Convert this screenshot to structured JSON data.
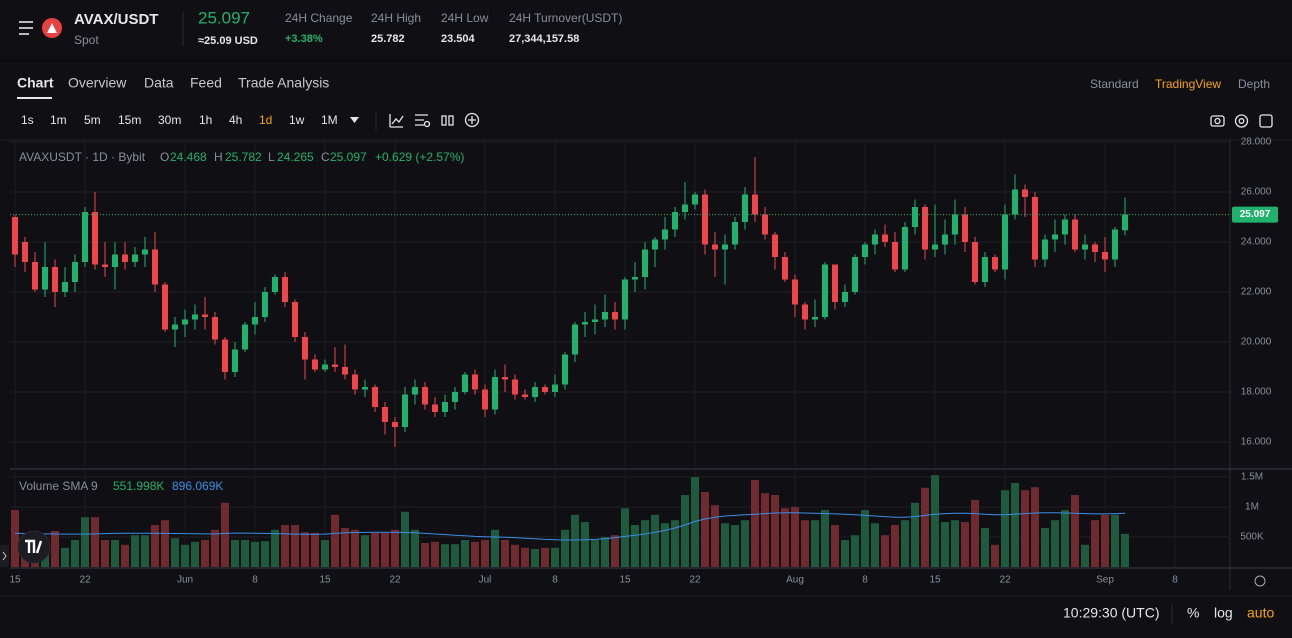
{
  "header": {
    "pair": "AVAX/USDT",
    "market": "Spot",
    "price": "25.097",
    "price_usd": "≈25.09 USD",
    "stats": [
      {
        "label": "24H Change",
        "value": "+3.38%"
      },
      {
        "label": "24H High",
        "value": "25.782"
      },
      {
        "label": "24H Low",
        "value": "23.504"
      },
      {
        "label": "24H Turnover(USDT)",
        "value": "27,344,157.58"
      }
    ]
  },
  "tabs": [
    "Chart",
    "Overview",
    "Data",
    "Feed",
    "Trade Analysis"
  ],
  "views": [
    "Standard",
    "TradingView",
    "Depth"
  ],
  "intervals": [
    "1s",
    "1m",
    "5m",
    "15m",
    "30m",
    "1h",
    "4h",
    "1d",
    "1w",
    "1M"
  ],
  "chart_data": {
    "type": "candlestick",
    "legend": {
      "symbol": "AVAXUSDT · 1D · Bybit",
      "o": "O",
      "h": "H",
      "l": "L",
      "c": "C",
      "change": "+0.629 (+2.57%)"
    },
    "categories": [
      "15",
      null,
      null,
      null,
      null,
      null,
      null,
      "22",
      null,
      null,
      null,
      null,
      null,
      null,
      null,
      null,
      null,
      "Jun",
      null,
      null,
      null,
      null,
      null,
      null,
      "8",
      null,
      null,
      null,
      null,
      null,
      null,
      "15",
      null,
      null,
      null,
      null,
      null,
      null,
      "22",
      null,
      null,
      null,
      null,
      null,
      null,
      null,
      null,
      "Jul",
      null,
      null,
      null,
      null,
      null,
      null,
      "8",
      null,
      null,
      null,
      null,
      null,
      null,
      "15",
      null,
      null,
      null,
      null,
      null,
      null,
      "22",
      null,
      null,
      null,
      null,
      null,
      null,
      null,
      null,
      null,
      "Aug",
      null,
      null,
      null,
      null,
      null,
      null,
      "8",
      null,
      null,
      null,
      null,
      null,
      null,
      "15",
      null,
      null,
      null,
      null,
      null,
      null,
      "22",
      null,
      null,
      null,
      null,
      null,
      null,
      null,
      null,
      null,
      "Sep",
      null,
      null,
      null,
      null,
      null,
      null,
      "8",
      null,
      null,
      null,
      null
    ],
    "open": [
      25.0,
      24.0,
      23.2,
      22.1,
      23.0,
      22.0,
      22.4,
      23.2,
      25.2,
      23.1,
      23.0,
      23.5,
      23.2,
      23.5,
      23.7,
      22.3,
      20.5,
      20.7,
      20.9,
      21.1,
      21.0,
      20.1,
      18.8,
      19.7,
      20.7,
      21.0,
      22.0,
      22.6,
      21.6,
      20.2,
      19.3,
      18.9,
      19.1,
      19.0,
      18.7,
      18.1,
      18.2,
      17.4,
      16.8,
      16.6,
      17.9,
      18.2,
      17.5,
      17.2,
      17.6,
      18.0,
      18.7,
      18.1,
      17.3,
      18.6,
      18.5,
      17.9,
      17.8,
      18.2,
      18.0,
      18.3,
      19.5,
      20.7,
      20.8,
      20.9,
      21.2,
      20.9,
      22.5,
      22.6,
      23.7,
      24.1,
      24.5,
      25.2,
      25.5,
      25.9,
      23.9,
      23.7,
      23.9,
      24.8,
      25.9,
      25.1,
      24.3,
      23.4,
      22.5,
      21.5,
      20.9,
      21.0,
      23.1,
      21.6,
      22.0,
      23.4,
      23.9,
      24.3,
      24.0,
      22.9,
      24.6,
      25.4,
      23.7,
      23.9,
      24.3,
      25.1,
      24.0,
      22.4,
      23.4,
      22.9,
      25.1,
      26.1,
      25.8,
      23.3,
      24.1,
      24.3,
      24.9,
      23.7,
      23.9,
      23.6,
      23.3,
      24.468,
      null,
      null,
      null,
      null,
      null,
      null,
      null,
      null,
      null
    ],
    "high": [
      25.1,
      24.2,
      23.6,
      24.0,
      23.3,
      23.0,
      23.5,
      25.4,
      26.0,
      24.0,
      24.0,
      24.0,
      23.8,
      24.2,
      24.4,
      22.4,
      21.0,
      21.3,
      21.5,
      21.8,
      21.2,
      20.2,
      20.0,
      20.8,
      21.6,
      22.2,
      22.7,
      22.8,
      21.7,
      20.4,
      19.5,
      19.3,
      19.8,
      19.9,
      18.9,
      18.5,
      18.3,
      17.6,
      17.0,
      18.2,
      18.5,
      18.4,
      17.8,
      17.9,
      18.2,
      18.8,
      18.9,
      18.3,
      18.9,
      19.1,
      18.7,
      18.1,
      18.4,
      18.3,
      18.7,
      19.6,
      20.8,
      21.2,
      21.5,
      21.9,
      21.6,
      22.6,
      23.2,
      24.0,
      24.2,
      25.0,
      25.4,
      26.4,
      26.0,
      26.1,
      24.4,
      24.3,
      25.0,
      26.2,
      27.4,
      25.4,
      24.4,
      23.6,
      22.7,
      21.6,
      21.7,
      23.2,
      23.1,
      22.3,
      23.5,
      24.0,
      24.5,
      24.7,
      24.4,
      24.8,
      25.7,
      25.5,
      25.5,
      24.9,
      25.7,
      25.4,
      24.2,
      23.6,
      23.5,
      25.5,
      26.7,
      26.3,
      26.0,
      24.3,
      24.9,
      25.1,
      25.1,
      24.3,
      24.0,
      24.2,
      24.6,
      25.782,
      null,
      null,
      null,
      null,
      null,
      null,
      null,
      null,
      null
    ],
    "low": [
      23.0,
      22.8,
      22.0,
      21.8,
      21.4,
      21.8,
      22.0,
      23.0,
      22.9,
      22.6,
      22.1,
      22.9,
      23.0,
      23.0,
      22.0,
      20.4,
      19.8,
      20.2,
      20.5,
      20.5,
      19.9,
      18.5,
      18.6,
      19.6,
      20.3,
      20.8,
      21.9,
      21.4,
      20.0,
      18.5,
      18.8,
      18.8,
      18.8,
      18.5,
      17.9,
      17.8,
      17.2,
      16.3,
      15.8,
      16.4,
      17.5,
      17.3,
      17.0,
      17.0,
      17.3,
      17.9,
      17.9,
      17.0,
      17.1,
      18.0,
      17.7,
      17.7,
      17.6,
      17.9,
      17.8,
      18.1,
      19.2,
      20.2,
      20.3,
      20.6,
      20.5,
      20.5,
      22.0,
      22.1,
      23.0,
      23.7,
      24.2,
      24.9,
      25.3,
      23.5,
      22.6,
      22.3,
      23.7,
      24.5,
      24.8,
      24.1,
      22.9,
      22.4,
      21.0,
      20.5,
      20.6,
      20.9,
      21.3,
      21.4,
      21.9,
      23.1,
      23.5,
      23.8,
      22.8,
      22.8,
      24.3,
      23.3,
      23.4,
      23.5,
      23.9,
      23.6,
      22.3,
      22.2,
      22.8,
      22.5,
      24.9,
      25.0,
      23.0,
      23.0,
      23.6,
      23.9,
      23.6,
      23.3,
      23.2,
      22.8,
      23.0,
      24.265,
      null,
      null,
      null,
      null,
      null,
      null,
      null,
      null,
      null
    ],
    "close": [
      23.5,
      23.2,
      22.1,
      23.0,
      22.0,
      22.4,
      23.2,
      25.2,
      23.1,
      23.0,
      23.5,
      23.2,
      23.5,
      23.7,
      22.3,
      20.5,
      20.7,
      20.9,
      21.1,
      21.0,
      20.1,
      18.8,
      19.7,
      20.7,
      21.0,
      22.0,
      22.6,
      21.6,
      20.2,
      19.3,
      18.9,
      19.1,
      19.0,
      18.7,
      18.1,
      18.2,
      17.4,
      16.8,
      16.6,
      17.9,
      18.2,
      17.5,
      17.2,
      17.6,
      18.0,
      18.7,
      18.1,
      17.3,
      18.6,
      18.5,
      17.9,
      17.8,
      18.2,
      18.0,
      18.3,
      19.5,
      20.7,
      20.8,
      20.9,
      21.2,
      20.9,
      22.5,
      22.6,
      23.7,
      24.1,
      24.5,
      25.2,
      25.5,
      25.9,
      23.9,
      23.7,
      23.9,
      24.8,
      25.9,
      25.1,
      24.3,
      23.4,
      22.5,
      21.5,
      20.9,
      21.0,
      23.1,
      21.6,
      22.0,
      23.4,
      23.9,
      24.3,
      24.0,
      22.9,
      24.6,
      25.4,
      23.7,
      23.9,
      24.3,
      25.1,
      24.0,
      22.4,
      23.4,
      22.9,
      25.1,
      26.1,
      25.8,
      23.3,
      24.1,
      24.3,
      24.9,
      23.7,
      23.9,
      23.6,
      23.3,
      24.5,
      25.097,
      null,
      null,
      null,
      null,
      null,
      null,
      null,
      null,
      null
    ],
    "up_color": "#20b26c",
    "down_color": "#ef454a",
    "ylim": [
      15,
      28
    ],
    "yticks": [
      {
        "value": 16,
        "label": "16.000"
      },
      {
        "value": 18,
        "label": "18.000"
      },
      {
        "value": 20,
        "label": "20.000"
      },
      {
        "value": 22,
        "label": "22.000"
      },
      {
        "value": 24,
        "label": "24.000"
      },
      {
        "value": 26,
        "label": "26.000"
      },
      {
        "value": 28,
        "label": "28.000"
      }
    ],
    "grid": true,
    "last_price_line": true,
    "volume": {
      "title": "Volume SMA 9",
      "last_label": "551.998K",
      "sma_label": "896.069K",
      "up_color": "#1e5a3d",
      "down_color": "#6e2a2f",
      "sma_color": "#3a8ee6",
      "values": [
        950000,
        450000,
        320000,
        320000,
        600000,
        320000,
        450000,
        830000,
        830000,
        450000,
        450000,
        370000,
        530000,
        530000,
        700000,
        780000,
        480000,
        370000,
        420000,
        450000,
        620000,
        1070000,
        450000,
        450000,
        420000,
        430000,
        620000,
        700000,
        700000,
        580000,
        570000,
        450000,
        870000,
        650000,
        620000,
        530000,
        570000,
        570000,
        620000,
        920000,
        620000,
        400000,
        420000,
        380000,
        380000,
        450000,
        420000,
        450000,
        620000,
        450000,
        370000,
        320000,
        300000,
        320000,
        320000,
        620000,
        870000,
        750000,
        450000,
        500000,
        530000,
        980000,
        700000,
        780000,
        870000,
        730000,
        780000,
        1200000,
        1500000,
        1250000,
        1030000,
        730000,
        700000,
        780000,
        1450000,
        1230000,
        1200000,
        980000,
        1000000,
        780000,
        780000,
        950000,
        700000,
        450000,
        530000,
        950000,
        730000,
        530000,
        700000,
        780000,
        1070000,
        1320000,
        1530000,
        750000,
        780000,
        750000,
        1120000,
        650000,
        370000,
        1280000,
        1400000,
        1280000,
        1330000,
        650000,
        780000,
        950000,
        1200000,
        370000,
        780000,
        870000,
        870000,
        551998,
        null,
        null,
        null,
        null,
        null,
        null,
        null,
        null,
        null
      ],
      "sma": [
        560000,
        558000,
        555000,
        552000,
        550000,
        548000,
        547000,
        548000,
        552000,
        556000,
        560000,
        562000,
        563000,
        563000,
        562000,
        560000,
        558000,
        556000,
        554000,
        552000,
        550000,
        560000,
        565000,
        565000,
        562000,
        560000,
        556000,
        552000,
        548000,
        545000,
        545000,
        548000,
        560000,
        570000,
        575000,
        578000,
        580000,
        580000,
        578000,
        575000,
        570000,
        560000,
        550000,
        540000,
        530000,
        520000,
        510000,
        505000,
        500000,
        495000,
        490000,
        480000,
        470000,
        460000,
        455000,
        450000,
        450000,
        455000,
        460000,
        470000,
        490000,
        510000,
        530000,
        550000,
        580000,
        610000,
        650000,
        700000,
        760000,
        800000,
        830000,
        850000,
        860000,
        870000,
        880000,
        890000,
        900000,
        905000,
        905000,
        900000,
        895000,
        890000,
        885000,
        880000,
        870000,
        860000,
        850000,
        840000,
        830000,
        830000,
        840000,
        860000,
        880000,
        890000,
        895000,
        895000,
        890000,
        880000,
        870000,
        870000,
        880000,
        890000,
        900000,
        905000,
        905000,
        900000,
        895000,
        890000,
        885000,
        885000,
        890000,
        896069,
        null,
        null,
        null,
        null,
        null,
        null,
        null,
        null,
        null
      ],
      "ylim": [
        0,
        1600000
      ],
      "yticks": [
        {
          "value": 500000,
          "label": "500K"
        },
        {
          "value": 1000000,
          "label": "1M"
        },
        {
          "value": 1500000,
          "label": "1.5M"
        }
      ]
    }
  },
  "footer": {
    "time": "10:29:30 (UTC)",
    "percent": "%",
    "log": "log",
    "auto": "auto"
  }
}
